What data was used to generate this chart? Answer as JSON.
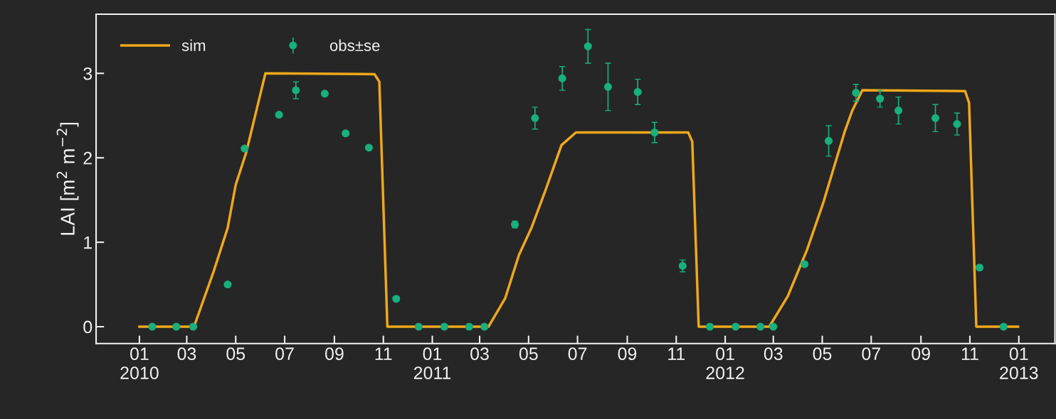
{
  "chart_data": {
    "type": "line",
    "ylabel": "LAI [m$^{2}$ m$^{−2}$]",
    "xlim": [
      "2009-11-08",
      "2013-02-15"
    ],
    "ylim": [
      -0.2,
      3.7
    ],
    "yticks": [
      0,
      1,
      2,
      3
    ],
    "xticks": [
      {
        "value": "2010-01-01",
        "label": "01\n2010"
      },
      {
        "value": "2010-03-01",
        "label": "03"
      },
      {
        "value": "2010-05-01",
        "label": "05"
      },
      {
        "value": "2010-07-01",
        "label": "07"
      },
      {
        "value": "2010-09-01",
        "label": "09"
      },
      {
        "value": "2010-11-01",
        "label": "11"
      },
      {
        "value": "2011-01-01",
        "label": "01\n2011"
      },
      {
        "value": "2011-03-01",
        "label": "03"
      },
      {
        "value": "2011-05-01",
        "label": "05"
      },
      {
        "value": "2011-07-01",
        "label": "07"
      },
      {
        "value": "2011-09-01",
        "label": "09"
      },
      {
        "value": "2011-11-01",
        "label": "11"
      },
      {
        "value": "2012-01-01",
        "label": "01\n2012"
      },
      {
        "value": "2012-03-01",
        "label": "03"
      },
      {
        "value": "2012-05-01",
        "label": "05"
      },
      {
        "value": "2012-07-01",
        "label": "07"
      },
      {
        "value": "2012-09-01",
        "label": "09"
      },
      {
        "value": "2012-11-01",
        "label": "11"
      },
      {
        "value": "2013-01-01",
        "label": "01\n2013"
      }
    ],
    "grid": false,
    "legend": "top left",
    "series": [
      {
        "name": "sim",
        "color": "#f0a81a",
        "marker": "none",
        "line_style": "solid",
        "x": [
          "2010-01-01",
          "2010-03-10",
          "2010-04-03",
          "2010-04-21",
          "2010-05-01",
          "2010-05-14",
          "2010-06-07",
          "2010-10-21",
          "2010-10-27",
          "2010-11-06",
          "2011-03-12",
          "2011-04-02",
          "2011-04-19",
          "2011-05-05",
          "2011-05-23",
          "2011-06-11",
          "2011-06-29",
          "2011-11-16",
          "2011-11-21",
          "2011-11-29",
          "2012-02-25",
          "2012-03-19",
          "2012-04-12",
          "2012-05-02",
          "2012-05-29",
          "2012-06-07",
          "2012-06-20",
          "2012-10-26",
          "2012-10-31",
          "2012-11-09",
          "2012-12-31"
        ],
        "values": [
          0,
          0,
          0.64,
          1.17,
          1.68,
          2.06,
          3.0,
          2.99,
          2.9,
          0,
          0,
          0.34,
          0.85,
          1.18,
          1.64,
          2.15,
          2.3,
          2.3,
          2.19,
          0,
          0,
          0.36,
          0.91,
          1.46,
          2.31,
          2.55,
          2.8,
          2.79,
          2.65,
          0,
          0
        ]
      },
      {
        "name": "obs±se",
        "type": "scatter",
        "color": "#17b07e",
        "marker": "circle",
        "x": [
          "2010-01-17",
          "2010-02-16",
          "2010-03-09",
          "2010-04-21",
          "2010-05-12",
          "2010-06-24",
          "2010-07-15",
          "2010-08-20",
          "2010-09-15",
          "2010-10-14",
          "2010-11-17",
          "2010-12-15",
          "2011-01-16",
          "2011-02-16",
          "2011-03-07",
          "2011-04-14",
          "2011-05-09",
          "2011-06-12",
          "2011-07-14",
          "2011-08-08",
          "2011-09-14",
          "2011-10-05",
          "2011-11-09",
          "2011-12-13",
          "2012-01-14",
          "2012-02-14",
          "2012-03-01",
          "2012-04-09",
          "2012-05-09",
          "2012-06-12",
          "2012-07-12",
          "2012-08-04",
          "2012-09-19",
          "2012-10-16",
          "2012-11-13",
          "2012-12-13"
        ],
        "values": [
          0,
          0,
          0,
          0.5,
          2.11,
          2.51,
          2.8,
          2.76,
          2.29,
          2.12,
          0.33,
          0,
          0,
          0,
          0,
          1.21,
          2.47,
          2.94,
          3.32,
          2.84,
          2.78,
          2.3,
          0.72,
          0,
          0,
          0,
          0,
          0.74,
          2.2,
          2.77,
          2.7,
          2.56,
          2.47,
          2.4,
          0.7,
          0
        ],
        "errors": [
          null,
          null,
          null,
          null,
          null,
          null,
          0.1,
          null,
          null,
          null,
          null,
          null,
          null,
          null,
          null,
          0.04,
          0.13,
          0.14,
          0.2,
          0.28,
          0.15,
          0.12,
          0.07,
          null,
          null,
          null,
          null,
          null,
          0.18,
          0.1,
          0.1,
          0.16,
          0.16,
          0.13,
          null,
          null
        ]
      }
    ]
  }
}
